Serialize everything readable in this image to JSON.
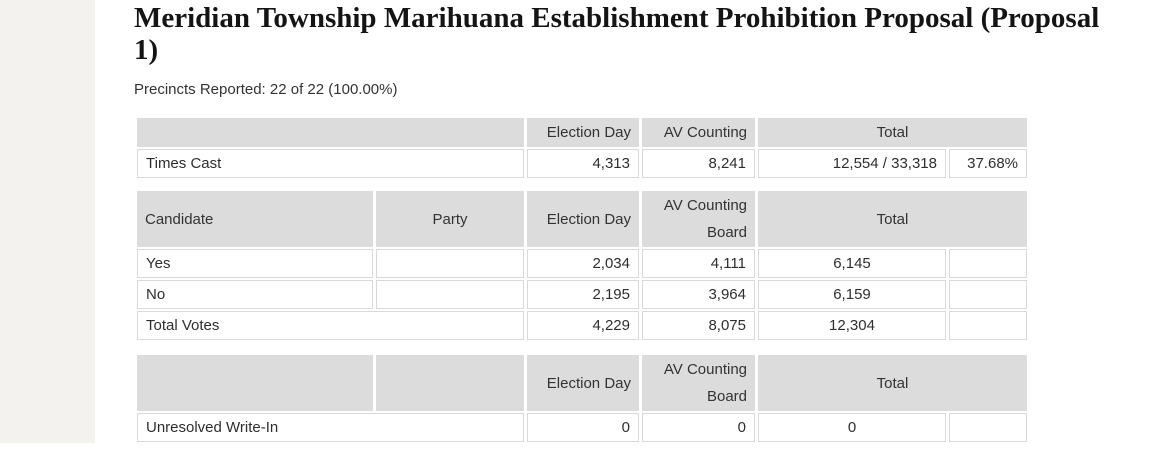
{
  "colors": {
    "header_bg": "#dcdcdc",
    "cell_border": "#d9d9d9",
    "sidebar_bg": "#f4f2ee",
    "text": "#333333"
  },
  "header": {
    "title_line1": "Meridian Township Marihuana Establishment Prohibition Proposal (Proposal",
    "title_line2": "1)",
    "precincts": "Precincts Reported: 22 of 22 (100.00%)"
  },
  "times_cast_table": {
    "headers": {
      "election_day": "Election Day",
      "av_counting": "AV Counting",
      "total": "Total"
    },
    "row": {
      "label": "Times Cast",
      "election_day": "4,313",
      "av_counting": "8,241",
      "total": "12,554 / 33,318",
      "percent": "37.68%"
    }
  },
  "results_table": {
    "headers": {
      "candidate": "Candidate",
      "party": "Party",
      "election_day": "Election Day",
      "av_counting_board": "AV Counting Board",
      "total": "Total"
    },
    "rows": [
      {
        "candidate": "Yes",
        "party": "",
        "election_day": "2,034",
        "av_counting_board": "4,111",
        "total": "6,145",
        "percent": ""
      },
      {
        "candidate": "No",
        "party": "",
        "election_day": "2,195",
        "av_counting_board": "3,964",
        "total": "6,159",
        "percent": ""
      },
      {
        "candidate": "Total Votes",
        "election_day": "4,229",
        "av_counting_board": "8,075",
        "total": "12,304",
        "percent": ""
      }
    ]
  },
  "write_in_table": {
    "headers": {
      "election_day": "Election Day",
      "av_counting_board": "AV Counting Board",
      "total": "Total"
    },
    "row": {
      "label": "Unresolved Write-In",
      "election_day": "0",
      "av_counting_board": "0",
      "total": "0",
      "percent": ""
    }
  }
}
